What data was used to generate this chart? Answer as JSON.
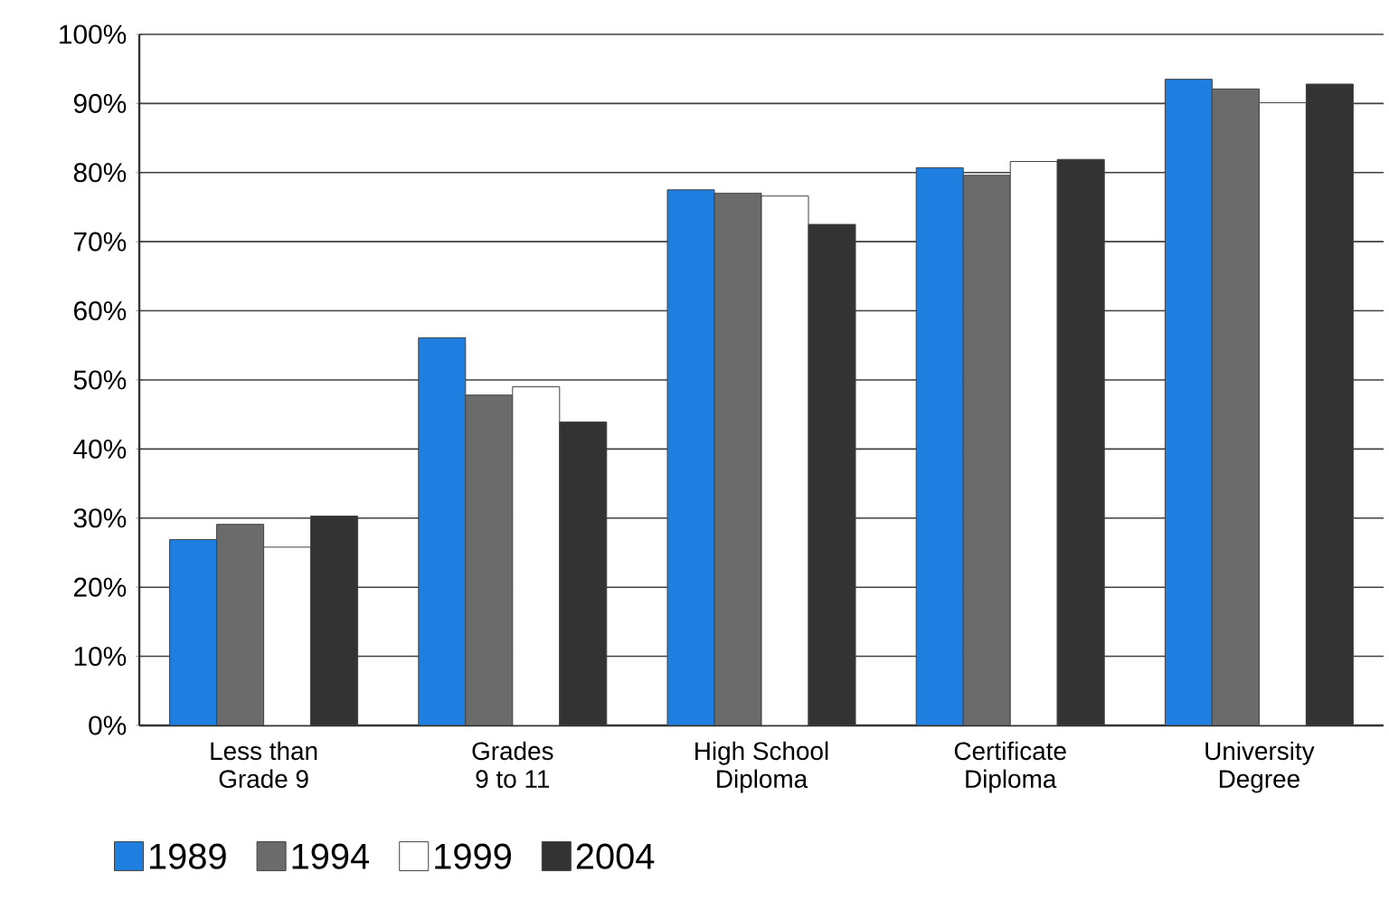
{
  "chart_data": {
    "type": "bar",
    "categories": [
      "Less than Grade 9",
      "Grades 9 to 11",
      "High School Diploma",
      "Certificate Diploma",
      "University Degree"
    ],
    "series": [
      {
        "name": "1989",
        "color": "#1f7fe0",
        "values": [
          26.9,
          56.1,
          77.5,
          80.7,
          93.5
        ]
      },
      {
        "name": "1994",
        "color": "#6b6b6b",
        "values": [
          29.1,
          47.8,
          77.0,
          79.6,
          92.1
        ]
      },
      {
        "name": "1999",
        "color": "#ffffff",
        "values": [
          25.8,
          49.0,
          76.6,
          81.6,
          90.1
        ]
      },
      {
        "name": "2004",
        "color": "#333333",
        "values": [
          30.3,
          43.9,
          72.5,
          81.9,
          92.8
        ]
      }
    ],
    "ylim": [
      0,
      100
    ],
    "yticks": [
      {
        "value": 0,
        "label": "0%"
      },
      {
        "value": 10,
        "label": "10%"
      },
      {
        "value": 20,
        "label": "20%"
      },
      {
        "value": 30,
        "label": "30%"
      },
      {
        "value": 40,
        "label": "40%"
      },
      {
        "value": 50,
        "label": "50%"
      },
      {
        "value": 60,
        "label": "60%"
      },
      {
        "value": 70,
        "label": "70%"
      },
      {
        "value": 80,
        "label": "80%"
      },
      {
        "value": 90,
        "label": "90%"
      },
      {
        "value": 100,
        "label": "100%"
      }
    ],
    "grid": "y",
    "legend": "bottom left"
  }
}
